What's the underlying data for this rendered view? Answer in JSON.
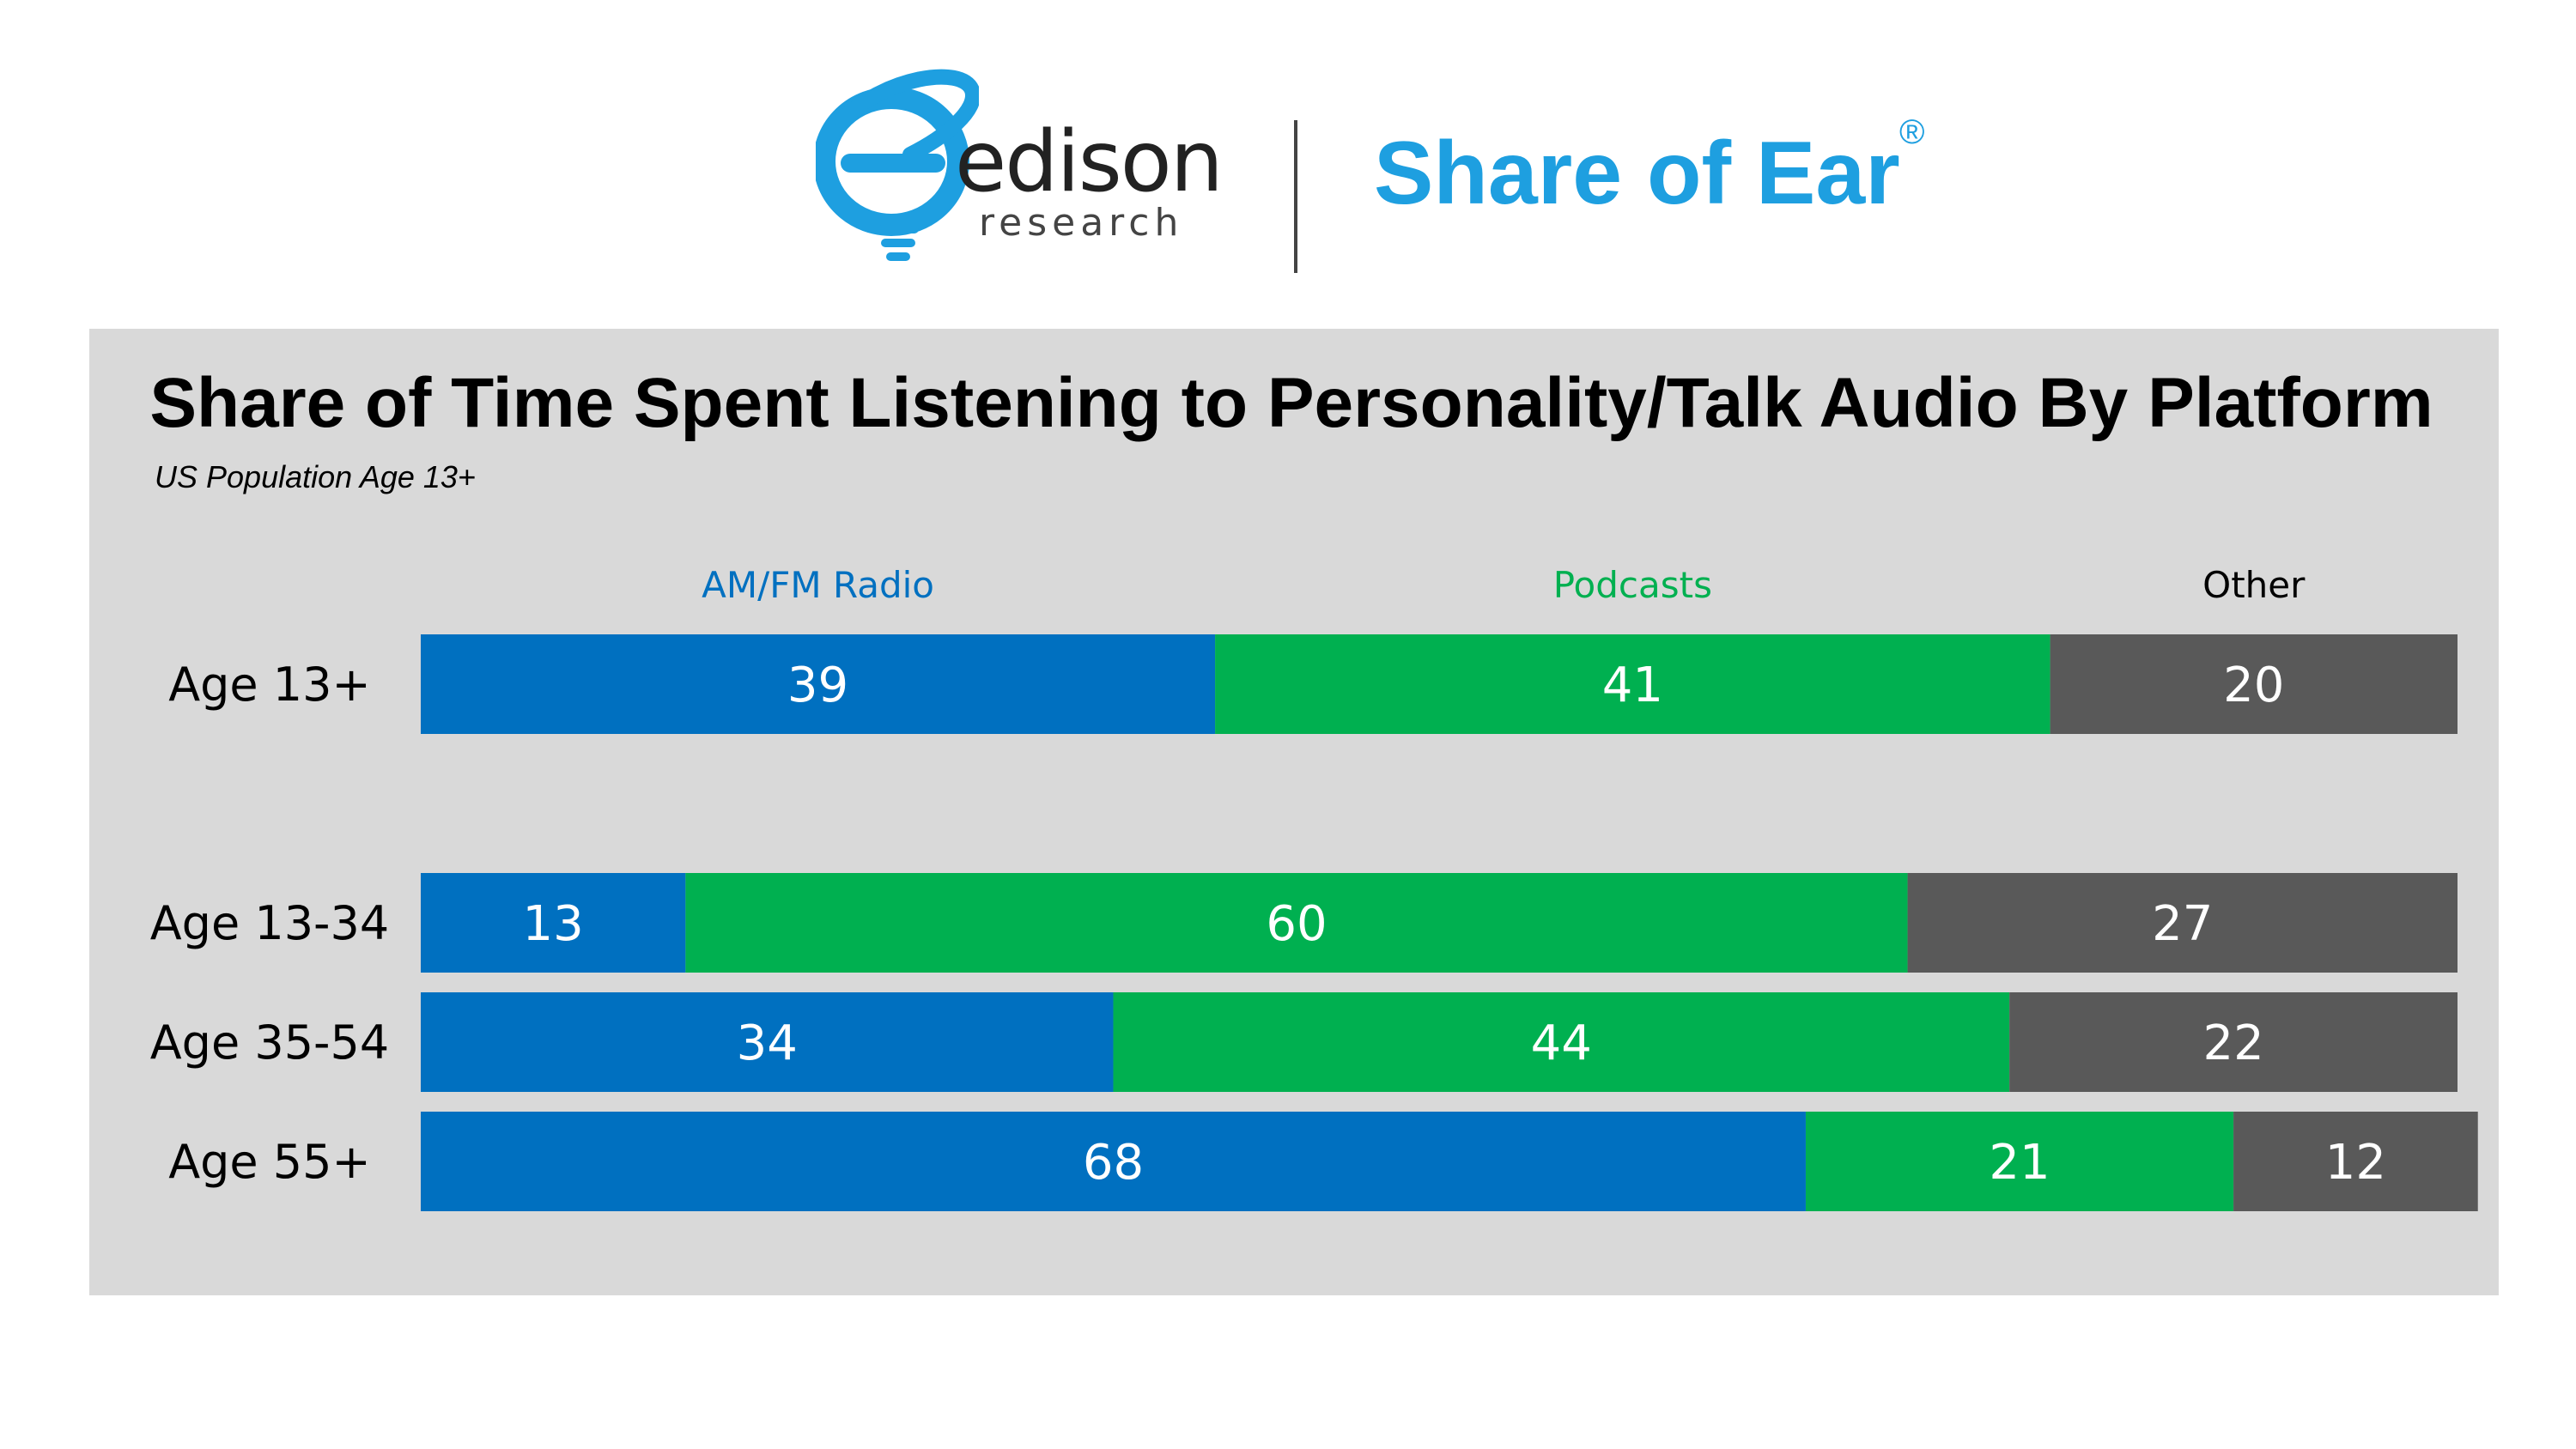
{
  "header": {
    "logo_word": "edison",
    "logo_sub": "research",
    "brand": "Share of Ear",
    "registered": "®"
  },
  "colors": {
    "radio": "#0070c0",
    "podcasts": "#00b050",
    "other": "#595959",
    "brand": "#1e9fe0",
    "panel": "#d9d9d9"
  },
  "chart_data": {
    "type": "bar",
    "orientation": "horizontal",
    "stacked": true,
    "title": "Share of Time Spent Listening to Personality/Talk Audio By Platform",
    "subtitle": "US Population Age 13+",
    "categories": [
      "Age 13+",
      "Age 13-34",
      "Age 35-54",
      "Age 55+"
    ],
    "series": [
      {
        "name": "AM/FM Radio",
        "color": "#0070c0",
        "values": [
          39,
          13,
          34,
          68
        ]
      },
      {
        "name": "Podcasts",
        "color": "#00b050",
        "values": [
          41,
          60,
          44,
          21
        ]
      },
      {
        "name": "Other",
        "color": "#595959",
        "values": [
          20,
          27,
          22,
          12
        ]
      }
    ],
    "xlim": [
      0,
      100
    ],
    "grid": false,
    "legend": "top",
    "data_labels": true
  }
}
